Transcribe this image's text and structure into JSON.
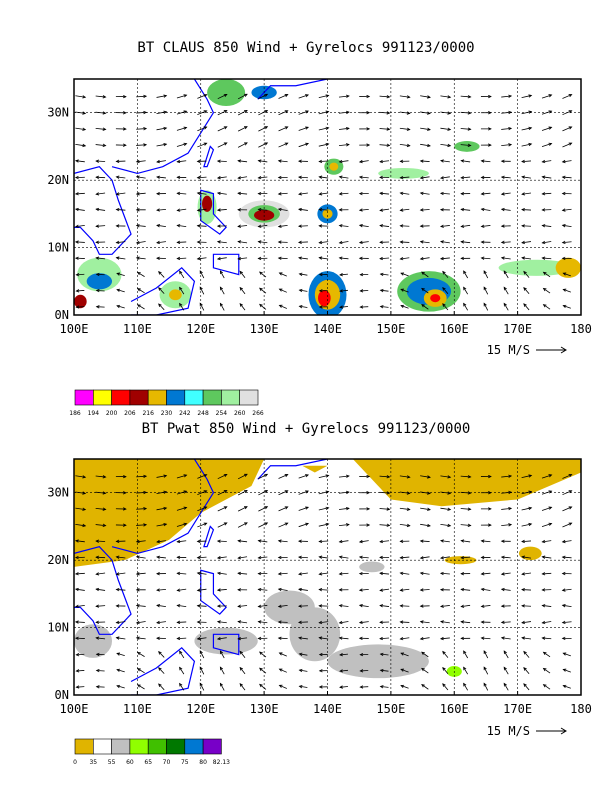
{
  "panels": [
    {
      "title": "BT CLAUS 850 Wind + Gyrelocs 991123/0000",
      "ref_vector_label": "15 M/S",
      "legend": {
        "colors": [
          "#ff00ff",
          "#ffff00",
          "#ff0000",
          "#a00000",
          "#e6b800",
          "#0078d2",
          "#40ffff",
          "#5ec85e",
          "#a0f0a0",
          "#e0e0e0"
        ],
        "labels": [
          "186",
          "194",
          "200",
          "206",
          "216",
          "230",
          "242",
          "248",
          "254",
          "260",
          "266"
        ]
      }
    },
    {
      "title": "BT Pwat 850 Wind + Gyrelocs 991123/0000",
      "ref_vector_label": "15 M/S",
      "legend": {
        "colors": [
          "#e0b400",
          "#ffffff",
          "#c0c0c0",
          "#90ff00",
          "#40c000",
          "#007800",
          "#0078d2",
          "#7800c8"
        ],
        "labels": [
          "0",
          "35",
          "55",
          "60",
          "65",
          "70",
          "75",
          "80",
          "82.13"
        ]
      }
    }
  ],
  "chart_data": [
    {
      "type": "heatmap",
      "title": "BT CLAUS 850 Wind + Gyrelocs 991123/0000",
      "x_ticks": [
        "100E",
        "110E",
        "120E",
        "130E",
        "140E",
        "150E",
        "160E",
        "170E",
        "180"
      ],
      "y_ticks": [
        "0N",
        "10N",
        "20N",
        "30N"
      ],
      "xlim": [
        100,
        180
      ],
      "ylim": [
        0,
        35
      ],
      "grid": true,
      "field": "cloud-top brightness temperature",
      "legend_bins": [
        186,
        194,
        200,
        206,
        216,
        230,
        242,
        248,
        254,
        260,
        266
      ],
      "overlay": "850 hPa wind vectors",
      "reference_vector": "15 M/S"
    },
    {
      "type": "heatmap",
      "title": "BT Pwat 850 Wind + Gyrelocs 991123/0000",
      "x_ticks": [
        "100E",
        "110E",
        "120E",
        "130E",
        "140E",
        "150E",
        "160E",
        "170E",
        "180"
      ],
      "y_ticks": [
        "0N",
        "10N",
        "20N",
        "30N"
      ],
      "xlim": [
        100,
        180
      ],
      "ylim": [
        0,
        35
      ],
      "grid": true,
      "field": "precipitable water",
      "legend_bins": [
        0,
        35,
        55,
        60,
        65,
        70,
        75,
        80,
        82.13
      ],
      "overlay": "850 hPa wind vectors",
      "reference_vector": "15 M/S"
    }
  ]
}
